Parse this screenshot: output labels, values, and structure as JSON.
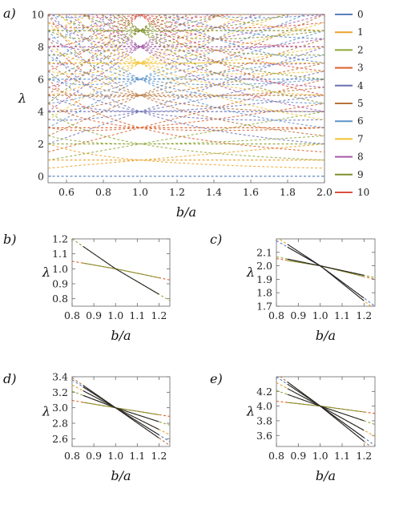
{
  "colors": [
    "#5b7fbd",
    "#e8a32a",
    "#8ea83a",
    "#d9622b",
    "#6c6fb3",
    "#b8733a",
    "#5b93c9",
    "#f2c230",
    "#a45aa6",
    "#7f8f2a",
    "#d9503e"
  ],
  "chart_data": [
    {
      "panel": "a)",
      "type": "line",
      "xlabel": "b/a",
      "ylabel": "λ",
      "xlim": [
        0.5,
        2.0
      ],
      "ylim": [
        -0.4,
        10
      ],
      "xticks": [
        "0.6",
        "0.8",
        "1.0",
        "1.2",
        "1.4",
        "1.6",
        "1.8",
        "2.0"
      ],
      "yticks": [
        "0",
        "2",
        "4",
        "6",
        "8",
        "10"
      ],
      "grid": false,
      "legend_position": "right",
      "legend": [
        "0",
        "1",
        "2",
        "3",
        "4",
        "5",
        "6",
        "7",
        "8",
        "9",
        "10"
      ],
      "series_description": "dashed eigenvalue curves for indices 0–10 (lambda = m·a/b + n·b/a families)"
    },
    {
      "panel": "b)",
      "type": "line",
      "xlabel": "b/a",
      "ylabel": "λ",
      "xlim": [
        0.8,
        1.25
      ],
      "ylim": [
        0.75,
        1.2
      ],
      "xticks": [
        "0.8",
        "0.9",
        "1.0",
        "1.1",
        "1.2"
      ],
      "yticks": [
        "0.8",
        "0.9",
        "1.0",
        "1.1",
        "1.2"
      ],
      "series": [
        {
          "name": "",
          "x": [
            0.85,
            1.0,
            1.2
          ],
          "values": [
            1.038,
            1.0,
            0.94
          ]
        },
        {
          "name": "",
          "x": [
            0.85,
            1.0,
            1.2
          ],
          "values": [
            1.15,
            1.0,
            0.83
          ]
        }
      ]
    },
    {
      "panel": "c)",
      "type": "line",
      "xlabel": "b/a",
      "ylabel": "λ",
      "xlim": [
        0.8,
        1.25
      ],
      "ylim": [
        1.7,
        2.2
      ],
      "xticks": [
        "0.8",
        "0.9",
        "1.0",
        "1.1",
        "1.2"
      ],
      "yticks": [
        "1.7",
        "1.8",
        "1.9",
        "2.0",
        "2.1"
      ],
      "series": [
        {
          "name": "",
          "x": [
            0.85,
            1.0,
            1.2
          ],
          "values": [
            2.04,
            2.0,
            1.92
          ]
        },
        {
          "name": "",
          "x": [
            0.85,
            1.0,
            1.2
          ],
          "values": [
            2.05,
            2.0,
            1.93
          ]
        },
        {
          "name": "",
          "x": [
            0.85,
            1.0,
            1.2
          ],
          "values": [
            2.16,
            2.0,
            1.74
          ]
        },
        {
          "name": "",
          "x": [
            0.85,
            1.0,
            1.2
          ],
          "values": [
            2.14,
            2.0,
            1.76
          ]
        }
      ]
    },
    {
      "panel": "d)",
      "type": "line",
      "xlabel": "b/a",
      "ylabel": "λ",
      "xlim": [
        0.8,
        1.25
      ],
      "ylim": [
        2.5,
        3.4
      ],
      "xticks": [
        "0.8",
        "0.9",
        "1.0",
        "1.1",
        "1.2"
      ],
      "yticks": [
        "2.6",
        "2.8",
        "3.0",
        "3.2",
        "3.4"
      ],
      "series": [
        {
          "name": "",
          "x": [
            0.85,
            1.0,
            1.2
          ],
          "values": [
            3.07,
            3.0,
            2.91
          ]
        },
        {
          "name": "",
          "x": [
            0.85,
            1.0,
            1.2
          ],
          "values": [
            3.16,
            3.0,
            2.82
          ]
        },
        {
          "name": "",
          "x": [
            0.85,
            1.0,
            1.2
          ],
          "values": [
            3.22,
            3.0,
            2.72
          ]
        },
        {
          "name": "",
          "x": [
            0.85,
            1.0,
            1.2
          ],
          "values": [
            3.27,
            3.0,
            2.65
          ]
        },
        {
          "name": "",
          "x": [
            0.85,
            1.0,
            1.2
          ],
          "values": [
            3.29,
            3.0,
            2.61
          ]
        }
      ]
    },
    {
      "panel": "e)",
      "type": "line",
      "xlabel": "b/a",
      "ylabel": "λ",
      "xlim": [
        0.8,
        1.25
      ],
      "ylim": [
        3.45,
        4.4
      ],
      "xticks": [
        "0.8",
        "0.9",
        "1.0",
        "1.1",
        "1.2"
      ],
      "yticks": [
        "3.6",
        "3.8",
        "4.0",
        "4.2"
      ],
      "series": [
        {
          "name": "",
          "x": [
            0.85,
            1.0,
            1.2
          ],
          "values": [
            4.05,
            4.0,
            3.92
          ]
        },
        {
          "name": "",
          "x": [
            0.85,
            1.0,
            1.2
          ],
          "values": [
            4.16,
            4.0,
            3.8
          ]
        },
        {
          "name": "",
          "x": [
            0.85,
            1.0,
            1.2
          ],
          "values": [
            4.24,
            4.0,
            3.67
          ]
        },
        {
          "name": "",
          "x": [
            0.85,
            1.0,
            1.2
          ],
          "values": [
            4.3,
            4.0,
            3.57
          ]
        },
        {
          "name": "",
          "x": [
            0.85,
            1.0,
            1.2
          ],
          "values": [
            4.33,
            4.0,
            3.52
          ]
        }
      ]
    }
  ]
}
